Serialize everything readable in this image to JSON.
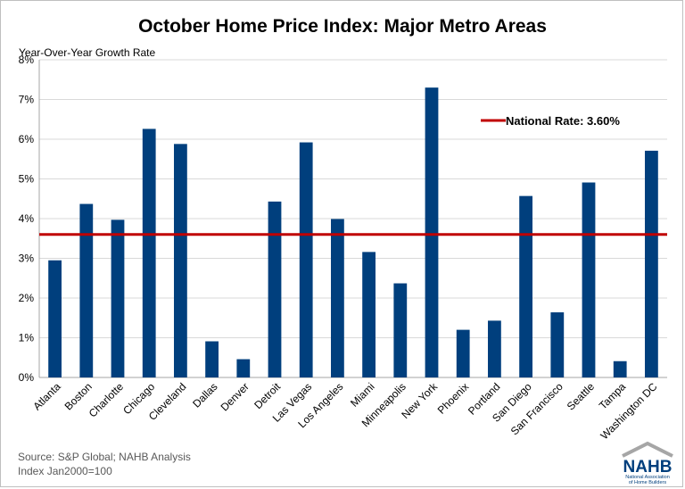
{
  "title": "October Home Price Index: Major Metro Areas",
  "footnotes": {
    "source": "Source: S&P Global; NAHB Analysis",
    "index": "Index Jan2000=100"
  },
  "logo": {
    "text": "NAHB",
    "subtitle_line1": "National Association",
    "subtitle_line2": "of Home Builders"
  },
  "colors": {
    "bar": "#003F7D",
    "reference_line": "#C00000",
    "grid": "#d9d9d9"
  },
  "chart_data": {
    "type": "bar",
    "title": "October Home Price Index: Major Metro Areas",
    "xlabel": "",
    "ylabel": "Year-Over-Year Growth Rate",
    "ylim": [
      0,
      8
    ],
    "yticks": [
      0,
      1,
      2,
      3,
      4,
      5,
      6,
      7,
      8
    ],
    "ytick_labels": [
      "0%",
      "1%",
      "2%",
      "3%",
      "4%",
      "5%",
      "6%",
      "7%",
      "8%"
    ],
    "grid": true,
    "categories": [
      "Atlanta",
      "Boston",
      "Charlotte",
      "Chicago",
      "Cleveland",
      "Dallas",
      "Denver",
      "Detroit",
      "Las Vegas",
      "Los Angeles",
      "Miami",
      "Minneapolis",
      "New York",
      "Phoenix",
      "Portland",
      "San Diego",
      "San Francisco",
      "Seattle",
      "Tampa",
      "Washington DC"
    ],
    "values": [
      2.95,
      4.37,
      3.97,
      6.26,
      5.88,
      0.91,
      0.46,
      4.43,
      5.92,
      3.99,
      3.16,
      2.37,
      7.3,
      1.2,
      1.43,
      4.57,
      1.64,
      4.91,
      0.41,
      5.71
    ],
    "reference_line": {
      "label": "National Rate: 3.60%",
      "value": 3.6,
      "legend_position": "top-right"
    }
  }
}
